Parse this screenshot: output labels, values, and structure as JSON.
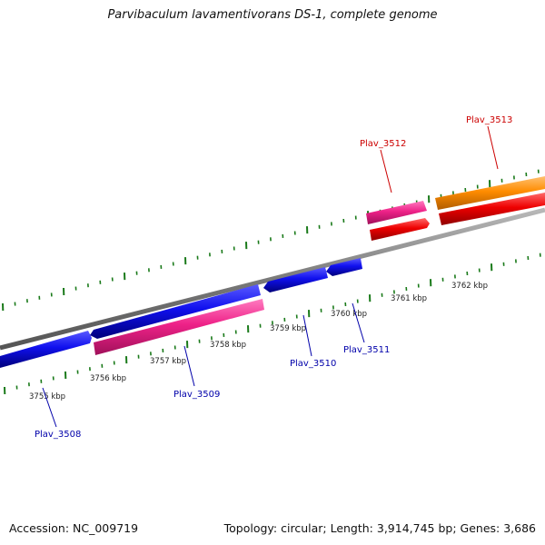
{
  "title": "Parvibaculum lavamentivorans DS-1, complete genome",
  "footer": {
    "accession": "Accession: NC_009719",
    "summary": "Topology: circular; Length: 3,914,745 bp; Genes: 3,686"
  },
  "kbp_ticks": [
    "3755 kbp",
    "3756 kbp",
    "3757 kbp",
    "3758 kbp",
    "3759 kbp",
    "3760 kbp",
    "3761 kbp",
    "3762 kbp"
  ],
  "genes": [
    {
      "id": "Plav_3508",
      "strand": "minus",
      "color": "#0000cc"
    },
    {
      "id": "Plav_3509",
      "strand": "minus",
      "color": "#0000cc"
    },
    {
      "id": "Plav_3510",
      "strand": "minus",
      "color": "#0000cc"
    },
    {
      "id": "Plav_3511",
      "strand": "minus",
      "color": "#0000cc"
    },
    {
      "id": "Plav_3512",
      "strand": "plus",
      "color": "#cc0000"
    },
    {
      "id": "Plav_3513",
      "strand": "plus",
      "color": "#cc0000"
    }
  ],
  "colors": {
    "backbone": "#808080",
    "tick_marks": "#1a7a1a",
    "gene_blue": "#1010ee",
    "gene_pink": "#ee2288",
    "gene_red": "#ee0000",
    "gene_orange": "#ff8c00",
    "label_blue": "#0000aa",
    "label_red": "#cc0000"
  }
}
